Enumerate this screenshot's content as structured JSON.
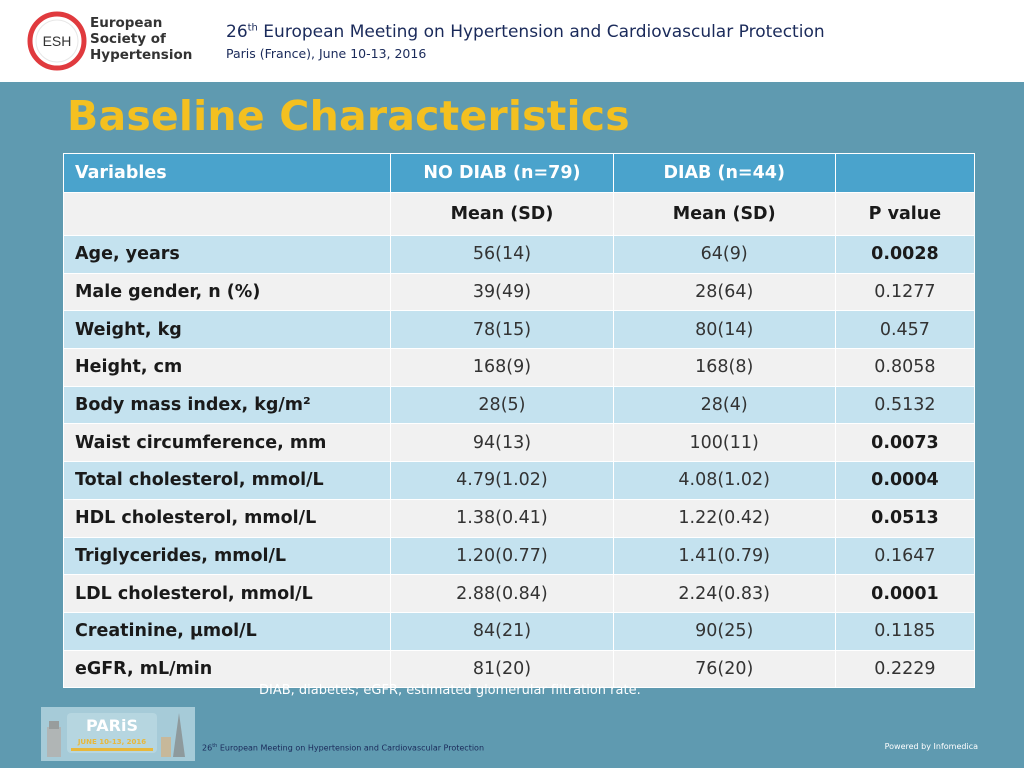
{
  "header": {
    "logo_initials": "ESH",
    "logo_lines": [
      "European",
      "Society of",
      "Hypertension"
    ],
    "conf_ordinal": "26",
    "conf_ordinal_suffix": "th",
    "conf_title_rest": " European Meeting on Hypertension and Cardiovascular Protection",
    "conf_subtitle": "Paris (France), June 10-13, 2016"
  },
  "slide_title": "Baseline Characteristics",
  "table": {
    "header": [
      "Variables",
      "NO DIAB (n=79)",
      "DIAB (n=44)",
      ""
    ],
    "subheader": [
      "",
      "Mean (SD)",
      "Mean (SD)",
      "P value"
    ],
    "rows": [
      {
        "label": "Age, years",
        "no_diab": "56(14)",
        "diab": "64(9)",
        "p": "0.0028",
        "bold": true
      },
      {
        "label": "Male gender, n (%)",
        "no_diab": "39(49)",
        "diab": "28(64)",
        "p": "0.1277",
        "bold": false
      },
      {
        "label": "Weight, kg",
        "no_diab": "78(15)",
        "diab": "80(14)",
        "p": "0.457",
        "bold": false
      },
      {
        "label": "Height, cm",
        "no_diab": "168(9)",
        "diab": "168(8)",
        "p": "0.8058",
        "bold": false
      },
      {
        "label": "Body mass index, kg/m²",
        "no_diab": "28(5)",
        "diab": "28(4)",
        "p": "0.5132",
        "bold": false
      },
      {
        "label": "Waist circumference, mm",
        "no_diab": "94(13)",
        "diab": "100(11)",
        "p": "0.0073",
        "bold": true
      },
      {
        "label": "Total cholesterol, mmol/L",
        "no_diab": "4.79(1.02)",
        "diab": "4.08(1.02)",
        "p": "0.0004",
        "bold": true
      },
      {
        "label": "HDL cholesterol, mmol/L",
        "no_diab": "1.38(0.41)",
        "diab": "1.22(0.42)",
        "p": "0.0513",
        "bold": true
      },
      {
        "label": "Triglycerides, mmol/L",
        "no_diab": "1.20(0.77)",
        "diab": "1.41(0.79)",
        "p": "0.1647",
        "bold": false
      },
      {
        "label": "LDL cholesterol, mmol/L",
        "no_diab": "2.88(0.84)",
        "diab": "2.24(0.83)",
        "p": "0.0001",
        "bold": true
      },
      {
        "label": "Creatinine, µmol/L",
        "no_diab": "84(21)",
        "diab": "90(25)",
        "p": "0.1185",
        "bold": false
      },
      {
        "label": "eGFR, mL/min",
        "no_diab": "81(20)",
        "diab": "76(20)",
        "p": "0.2229",
        "bold": false
      }
    ]
  },
  "footnote": "DIAB, diabetes; eGFR, estimated glomerular filtration rate.",
  "badge": {
    "title": "PARiS",
    "dates": "JUNE 10-13, 2016"
  },
  "footer": {
    "ordinal": "26",
    "ordinal_suffix": "th",
    "text_rest": " European Meeting on Hypertension and Cardiovascular Protection",
    "powered_by": "Powered by Infomedica"
  },
  "colors": {
    "background": "#5f9ab0",
    "title_yellow": "#f4c020",
    "table_header": "#4aa3cc",
    "row_light_blue": "#c4e2ef",
    "row_light_gray": "#f1f1f1",
    "esh_red": "#e03a3e"
  }
}
